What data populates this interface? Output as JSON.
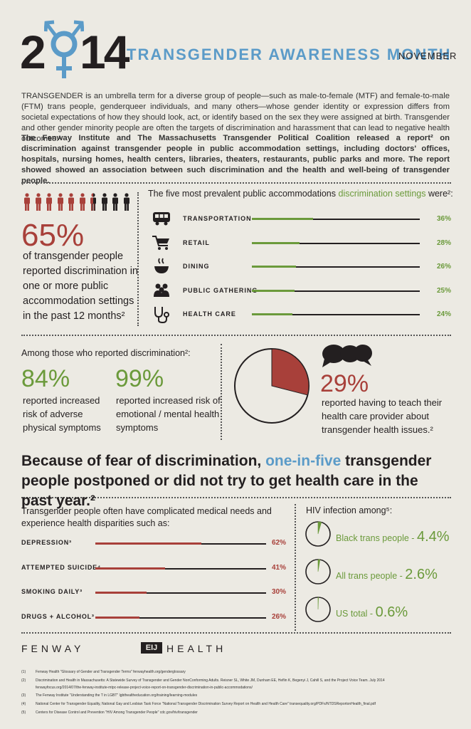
{
  "header": {
    "year_2": "2",
    "year_14": "14",
    "title": "TRANSGENDER AWARENESS MONTH",
    "month": "NOVEMBER"
  },
  "intro": {
    "p1": "TRANSGENDER is an umbrella term for a diverse group of people—such as male-to-female (MTF) and female-to-male (FTM) trans people, genderqueer individuals, and many others—whose gender identity or expression differs from societal expectations of how they should look, act, or identify based on the sex they were assigned at birth. Transgender and other gender minority people are often the targets of discrimination and harassment that can lead to negative health outcomes.¹",
    "p2": "The Fenway Institute and The Massachusetts Transgender Political Coalition released a report² on discrimination against transgender people in public accommodation settings, including doctors' offices, hospitals, nursing homes, health centers, libraries, theaters, restaurants, public parks and more. The report showed showed an association between such discrimination and the health and well-being of transgender people."
  },
  "people": {
    "total": 10,
    "highlighted": 6.5,
    "highlight_color": "#a8403a",
    "base_color": "#231f20"
  },
  "stat65": {
    "value": "65%",
    "desc": "of transgender people reported discrimination in one or more public accommodation settings in the past 12 months²"
  },
  "settings": {
    "title_pre": "The five most prevalent public accommodations ",
    "title_highlight": "discrimination settings",
    "title_post": " were²:",
    "items": [
      {
        "label": "TRANSPORTATION",
        "value": "36%",
        "fraction": 0.36,
        "icon": "bus-icon"
      },
      {
        "label": "RETAIL",
        "value": "28%",
        "fraction": 0.28,
        "icon": "shopping-cart-icon"
      },
      {
        "label": "DINING",
        "value": "26%",
        "fraction": 0.26,
        "icon": "bowl-icon"
      },
      {
        "label": "PUBLIC GATHERING",
        "value": "25%",
        "fraction": 0.25,
        "icon": "people-group-icon"
      },
      {
        "label": "HEALTH CARE",
        "value": "24%",
        "fraction": 0.24,
        "icon": "stethoscope-icon"
      }
    ]
  },
  "among": "Among those who reported discrimination²:",
  "stat84": {
    "value": "84%",
    "desc": "reported increased risk of adverse physical symptoms"
  },
  "stat99": {
    "value": "99%",
    "desc": "reported increased risk of emotional / mental health symptoms"
  },
  "stat29": {
    "value": "29%",
    "desc": "reported having to teach their health care provider about transgender health issues.²",
    "fraction": 0.29
  },
  "headline": {
    "pre": "Because of fear of discrimination, ",
    "highlight": "one-in-five",
    "post": " transgender people postponed or did not try to get health care in the past year.²"
  },
  "disparities": {
    "title": "Transgender people often have complicated medical needs and experience health disparities such as:",
    "items": [
      {
        "label": "DEPRESSION³",
        "value": "62%",
        "fraction": 0.62
      },
      {
        "label": "ATTEMPTED SUICIDE⁴",
        "value": "41%",
        "fraction": 0.41
      },
      {
        "label": "SMOKING DAILY³",
        "value": "30%",
        "fraction": 0.3
      },
      {
        "label": "DRUGS + ALCOHOL³",
        "value": "26%",
        "fraction": 0.26
      }
    ]
  },
  "hiv": {
    "title": "HIV infection among⁵:",
    "items": [
      {
        "label": "Black trans people - ",
        "value": "4.4%",
        "fraction": 0.044
      },
      {
        "label": "All trans people - ",
        "value": "2.6%",
        "fraction": 0.026
      },
      {
        "label": "US total - ",
        "value": "0.6%",
        "fraction": 0.006
      }
    ]
  },
  "logo": {
    "left": "FENWAY",
    "mark": "EIJ",
    "right": "HEALTH"
  },
  "references": [
    {
      "n": "(1)",
      "text": "Fenway Health \"Glossary of Gender and Transgender Terms\" fenwayhealth.org/genderglossary"
    },
    {
      "n": "(2)",
      "text": "Discrimination and Health in Massachusetts: A Statewide Survey of Transgender and Gender NonConforming Adults. Reisner SL, White JM, Dunham EE, Heflin K, Begenyi J, Cahill S, and the Project Voice Team. July 2014"
    },
    {
      "n": "",
      "text": "fenwayfocus.org/2014/07/the-fenway-institute-mtpc-release-project-voice-report-on-transgender-discrimination-in-public-accommodations/"
    },
    {
      "n": "(3)",
      "text": "The Fenway Institute \"Understanding the T in LGBT\" lgbthealtheducation.org/training/learning-modules"
    },
    {
      "n": "(4)",
      "text": "National Center for Transgender Equality, National Gay and Lesbian Task Force \"National Transgender Discrimination Survey Report on Health and Health Care\" transequality.org/PDFs/NTDSReportonHealth_final.pdf"
    },
    {
      "n": "(5)",
      "text": "Centers for Disease Control and Prevention \"HIV Among Transgender People\" cdc.gov/hiv/transgender"
    }
  ]
}
